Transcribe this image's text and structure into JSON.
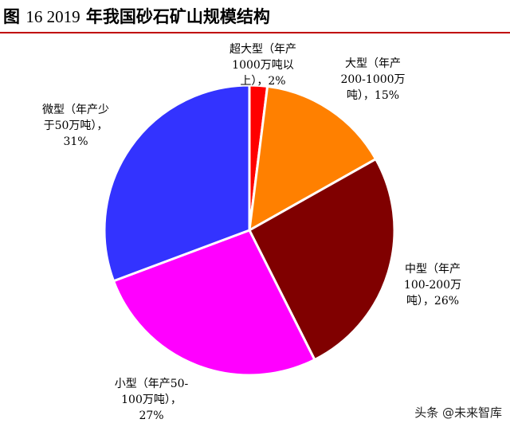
{
  "figure": {
    "title_prefix": "图",
    "title_number": "16 2019",
    "title_text": "年我国砂石矿山规模结构",
    "rule_color": "#c00000"
  },
  "watermark": "头条 @未来智库",
  "chart_data": {
    "type": "pie",
    "title": "图 16 2019 年我国砂石矿山规模结构",
    "start": "top",
    "direction": "clockwise",
    "slices": [
      {
        "name": "超大型（年产1000万吨以上）",
        "value": 2,
        "color": "#ff0000",
        "label_lines": [
          "超大型（年产",
          "1000万吨以",
          "上），2%"
        ]
      },
      {
        "name": "大型（年产200-1000万吨）",
        "value": 15,
        "color": "#ff8000",
        "label_lines": [
          "大型（年产",
          "200-1000万",
          "吨），15%"
        ]
      },
      {
        "name": "中型（年产100-200万吨）",
        "value": 26,
        "color": "#800000",
        "label_lines": [
          "中型（年产",
          "100-200万",
          "吨），26%"
        ]
      },
      {
        "name": "小型（年产50-100万吨）",
        "value": 27,
        "color": "#ff00ff",
        "label_lines": [
          "小型（年产50-",
          "100万吨），",
          "27%"
        ]
      },
      {
        "name": "微型（年产少于50万吨）",
        "value": 31,
        "color": "#3333ff",
        "label_lines": [
          "微型（年产少",
          "于50万吨），",
          "31%"
        ]
      }
    ]
  }
}
